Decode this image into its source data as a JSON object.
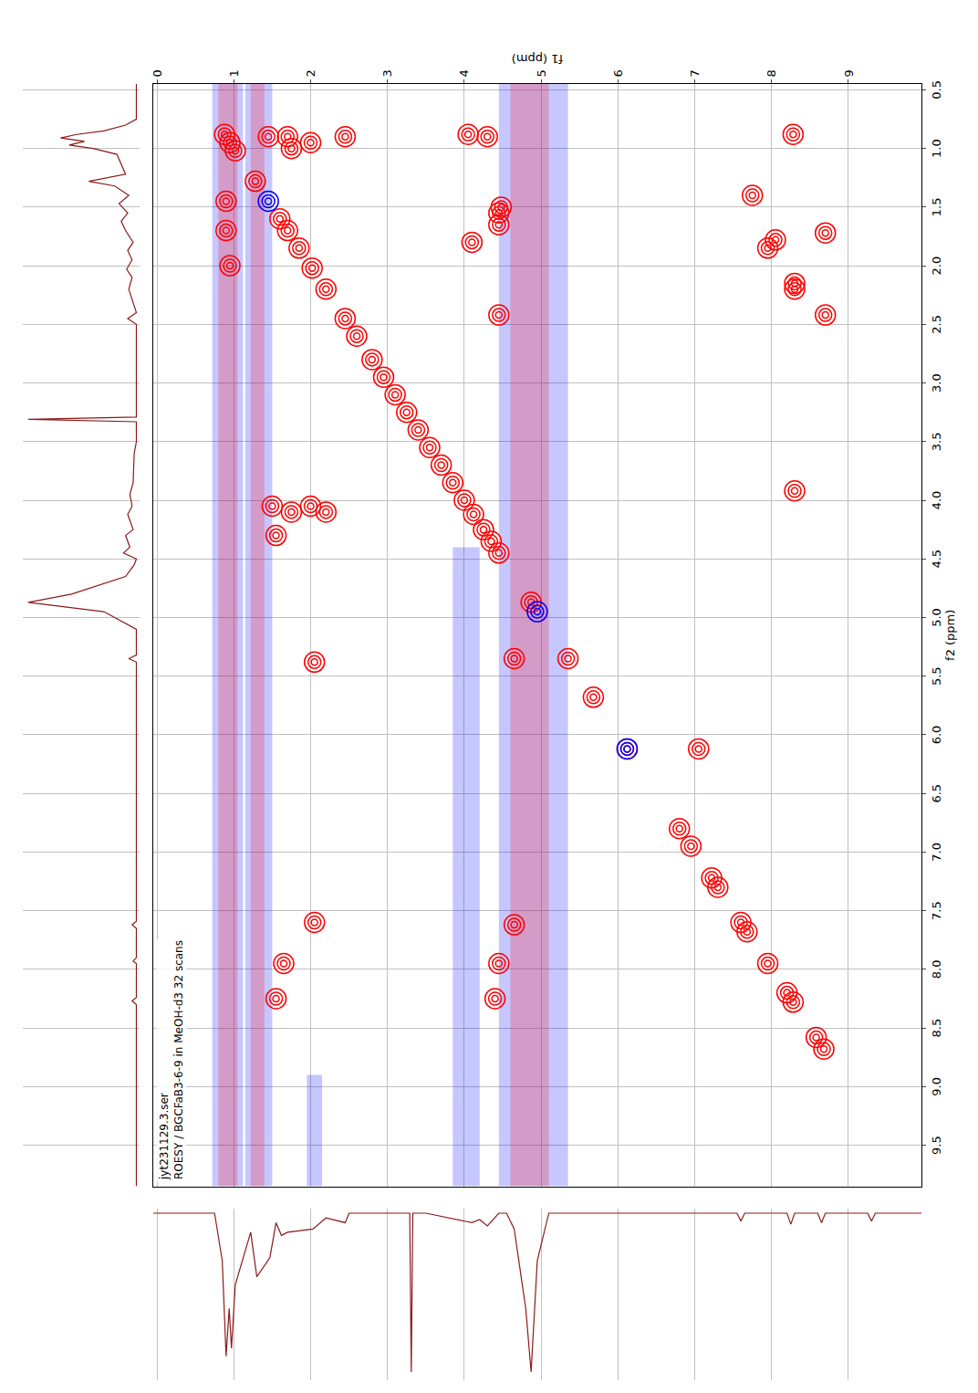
{
  "chart_data": {
    "type": "contour",
    "annotation": [
      "jyt231129.3.ser",
      "ROESY / BGCFaB3-6-9 in MeOH-d3 32 scans"
    ],
    "x_label": "f2 (ppm)",
    "y_label": "f1 (ppm)",
    "xlim": [
      9.85,
      0.45
    ],
    "ylim": [
      9.95,
      -0.05
    ],
    "xticks": [
      0.5,
      {
        "value": 1,
        "label": "1.0"
      },
      1.5,
      {
        "value": 2,
        "label": "2.0"
      },
      2.5,
      {
        "value": 3,
        "label": "3.0"
      },
      3.5,
      {
        "value": 4,
        "label": "4.0"
      },
      4.5,
      {
        "value": 5,
        "label": "5.0"
      },
      5.5,
      {
        "value": 6,
        "label": "6.0"
      },
      6.5,
      {
        "value": 7,
        "label": "7.0"
      },
      7.5,
      {
        "value": 8,
        "label": "8.0"
      },
      8.5,
      {
        "value": 9,
        "label": "9.0"
      },
      9.5
    ],
    "yticks": [
      0,
      1,
      2,
      3,
      4,
      5,
      6,
      7,
      8,
      9
    ],
    "grid": true,
    "series": [
      {
        "color": "#ff0000",
        "marker": "circle-open",
        "x": [
          0.88,
          0.95,
          1.02,
          1.28,
          1.6,
          1.7,
          1.85,
          2.02,
          2.2,
          2.45,
          2.6,
          2.8,
          2.95,
          3.1,
          3.25,
          3.4,
          3.55,
          3.7,
          3.85,
          4.0,
          4.12,
          4.25,
          4.35,
          4.45,
          4.87,
          5.35,
          5.68,
          6.12,
          6.8,
          6.95,
          7.22,
          7.3,
          7.6,
          7.68,
          7.95,
          8.2,
          8.28,
          8.58,
          8.68,
          0.9,
          0.9,
          0.95,
          0.9,
          0.88,
          0.9,
          0.88,
          1.0,
          1.45,
          1.7,
          2.0,
          1.4,
          1.72,
          1.78,
          1.85,
          2.15,
          2.2,
          2.42,
          3.92,
          1.55,
          1.65,
          2.42,
          1.8,
          1.5,
          4.05,
          4.1,
          4.05,
          4.1,
          4.3,
          5.38,
          5.35,
          6.12,
          7.6,
          7.62,
          7.95,
          7.95,
          8.25,
          8.25
        ],
        "y": [
          0.88,
          0.95,
          1.02,
          1.28,
          1.6,
          1.7,
          1.85,
          2.02,
          2.2,
          2.45,
          2.6,
          2.8,
          2.95,
          3.1,
          3.25,
          3.4,
          3.55,
          3.7,
          3.85,
          4.0,
          4.12,
          4.25,
          4.35,
          4.45,
          4.87,
          5.35,
          5.68,
          6.12,
          6.8,
          6.95,
          7.22,
          7.3,
          7.6,
          7.68,
          7.95,
          8.2,
          8.28,
          8.58,
          8.68,
          1.45,
          1.7,
          2.0,
          2.45,
          4.05,
          4.3,
          8.28,
          1.75,
          0.9,
          0.9,
          0.95,
          7.75,
          8.7,
          8.05,
          7.95,
          8.3,
          8.3,
          8.7,
          8.3,
          4.45,
          4.45,
          4.45,
          4.1,
          4.48,
          1.5,
          1.75,
          2.0,
          2.2,
          1.55,
          2.05,
          4.65,
          7.05,
          2.05,
          4.65,
          1.65,
          4.45,
          1.55,
          4.4
        ]
      },
      {
        "color": "#0000ff",
        "marker": "circle-open",
        "x": [
          1.45,
          4.95,
          6.12
        ],
        "y": [
          1.45,
          4.95,
          6.12
        ]
      }
    ],
    "t1_noise": [
      {
        "color": "#0000ff",
        "f1": [
          0.72,
          1.12
        ],
        "f2": [
          0.45,
          9.85
        ]
      },
      {
        "color": "#ff0000",
        "f1": [
          0.8,
          1.05
        ],
        "f2": [
          0.45,
          9.85
        ]
      },
      {
        "color": "#0000ff",
        "f1": [
          1.15,
          1.5
        ],
        "f2": [
          0.45,
          9.85
        ]
      },
      {
        "color": "#ff0000",
        "f1": [
          1.22,
          1.4
        ],
        "f2": [
          0.45,
          9.85
        ]
      },
      {
        "color": "#0000ff",
        "f1": [
          3.85,
          4.2
        ],
        "f2": [
          4.4,
          9.85
        ]
      },
      {
        "color": "#0000ff",
        "f1": [
          4.45,
          5.35
        ],
        "f2": [
          0.45,
          9.85
        ]
      },
      {
        "color": "#ff0000",
        "f1": [
          4.6,
          5.1
        ],
        "f2": [
          0.45,
          9.85
        ]
      },
      {
        "color": "#0000ff",
        "f1": [
          1.95,
          2.15
        ],
        "f2": [
          8.9,
          9.85
        ]
      }
    ],
    "projections": {
      "color": "#8b1a1a",
      "intensity_lim": [
        -3,
        105
      ],
      "f2": {
        "x": [
          9.85,
          8.3,
          8.27,
          8.24,
          7.95,
          7.93,
          7.9,
          7.65,
          7.62,
          7.59,
          5.38,
          5.35,
          5.32,
          5.1,
          4.95,
          4.87,
          4.8,
          4.65,
          4.55,
          4.5,
          4.45,
          4.4,
          4.3,
          4.25,
          4.12,
          4.05,
          3.95,
          3.85,
          3.6,
          3.5,
          3.33,
          3.31,
          3.29,
          2.5,
          2.45,
          2.4,
          2.2,
          2.1,
          2.03,
          1.95,
          1.87,
          1.8,
          1.7,
          1.62,
          1.55,
          1.47,
          1.4,
          1.32,
          1.28,
          1.22,
          1.05,
          1.0,
          0.97,
          0.94,
          0.91,
          0.88,
          0.85,
          0.8,
          0.75,
          0.45
        ],
        "y": [
          0,
          0,
          4,
          0,
          0,
          3,
          0,
          0,
          4,
          0,
          0,
          7,
          0,
          0,
          30,
          100,
          60,
          10,
          2,
          0,
          12,
          6,
          10,
          3,
          8,
          4,
          6,
          3,
          2,
          0,
          0,
          100,
          0,
          0,
          8,
          0,
          7,
          4,
          9,
          4,
          8,
          3,
          10,
          14,
          8,
          16,
          7,
          20,
          44,
          10,
          18,
          40,
          62,
          48,
          70,
          55,
          30,
          10,
          0,
          0
        ]
      },
      "f1": {
        "x": [
          0,
          0,
          5,
          0,
          0,
          6,
          0,
          0,
          7,
          0,
          0,
          5,
          0,
          0,
          30,
          100,
          60,
          10,
          0,
          0,
          8,
          4,
          6,
          0,
          0,
          100,
          0,
          0,
          6,
          3,
          10,
          12,
          14,
          6,
          28,
          40,
          12,
          45,
          85,
          60,
          90,
          30,
          0,
          0
        ],
        "y": [
          9.95,
          9.35,
          9.3,
          9.25,
          8.7,
          8.65,
          8.6,
          8.3,
          8.25,
          8.2,
          7.65,
          7.6,
          7.55,
          5.1,
          4.95,
          4.87,
          4.8,
          4.65,
          4.55,
          4.45,
          4.3,
          4.2,
          4.1,
          3.5,
          3.33,
          3.31,
          3.29,
          2.5,
          2.45,
          2.2,
          2.03,
          1.7,
          1.62,
          1.55,
          1.47,
          1.3,
          1.22,
          1.02,
          0.97,
          0.94,
          0.9,
          0.85,
          0.75,
          -0.05
        ]
      }
    }
  }
}
